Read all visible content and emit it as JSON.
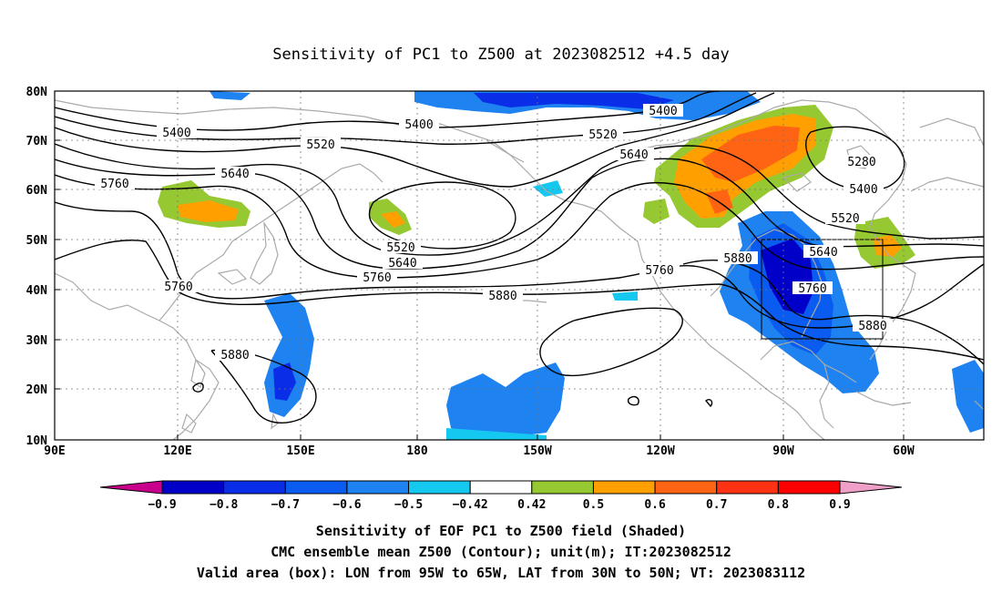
{
  "title": "Sensitivity of PC1 to Z500 at 2023082512 +4.5 day",
  "lat_labels": [
    "80N",
    "70N",
    "60N",
    "50N",
    "40N",
    "30N",
    "20N",
    "10N"
  ],
  "lon_labels": [
    "90E",
    "120E",
    "150E",
    "180",
    "150W",
    "120W",
    "90W",
    "60W"
  ],
  "contour_labels": [
    {
      "text": "5400",
      "key": "a"
    },
    {
      "text": "5400",
      "key": "b"
    },
    {
      "text": "5400",
      "key": "c"
    },
    {
      "text": "5400",
      "key": "d"
    },
    {
      "text": "5520",
      "key": "e"
    },
    {
      "text": "5520",
      "key": "f"
    },
    {
      "text": "5520",
      "key": "g"
    },
    {
      "text": "5520",
      "key": "h"
    },
    {
      "text": "5640",
      "key": "i"
    },
    {
      "text": "5640",
      "key": "j"
    },
    {
      "text": "5640",
      "key": "k"
    },
    {
      "text": "5640",
      "key": "l"
    },
    {
      "text": "5760",
      "key": "m"
    },
    {
      "text": "5760",
      "key": "n"
    },
    {
      "text": "5760",
      "key": "o"
    },
    {
      "text": "5760",
      "key": "p"
    },
    {
      "text": "5760",
      "key": "q"
    },
    {
      "text": "5880",
      "key": "r"
    },
    {
      "text": "5880",
      "key": "s"
    },
    {
      "text": "5880",
      "key": "t"
    },
    {
      "text": "5880",
      "key": "u"
    },
    {
      "text": "5280",
      "key": "v"
    }
  ],
  "colorbar": {
    "labels": [
      "-0.9",
      "-0.8",
      "-0.7",
      "-0.6",
      "-0.5",
      "-0.42",
      "0.42",
      "0.5",
      "0.6",
      "0.7",
      "0.8",
      "0.9"
    ],
    "colors": [
      "#c8008c",
      "#0000c8",
      "#0a2ee8",
      "#0a5cf0",
      "#1e82f0",
      "#14c8f0",
      "#ffffff",
      "#96c832",
      "#ffa000",
      "#ff6414",
      "#ff3214",
      "#ff0000",
      "#f0a0c8"
    ]
  },
  "caption": {
    "line1": "Sensitivity of EOF PC1 to Z500 field (Shaded)",
    "line2": "CMC ensemble mean Z500 (Contour); unit(m); IT:2023082512",
    "line3": "Valid area (box): LON from 95W to 65W, LAT from 30N to 50N; VT: 2023083112"
  }
}
